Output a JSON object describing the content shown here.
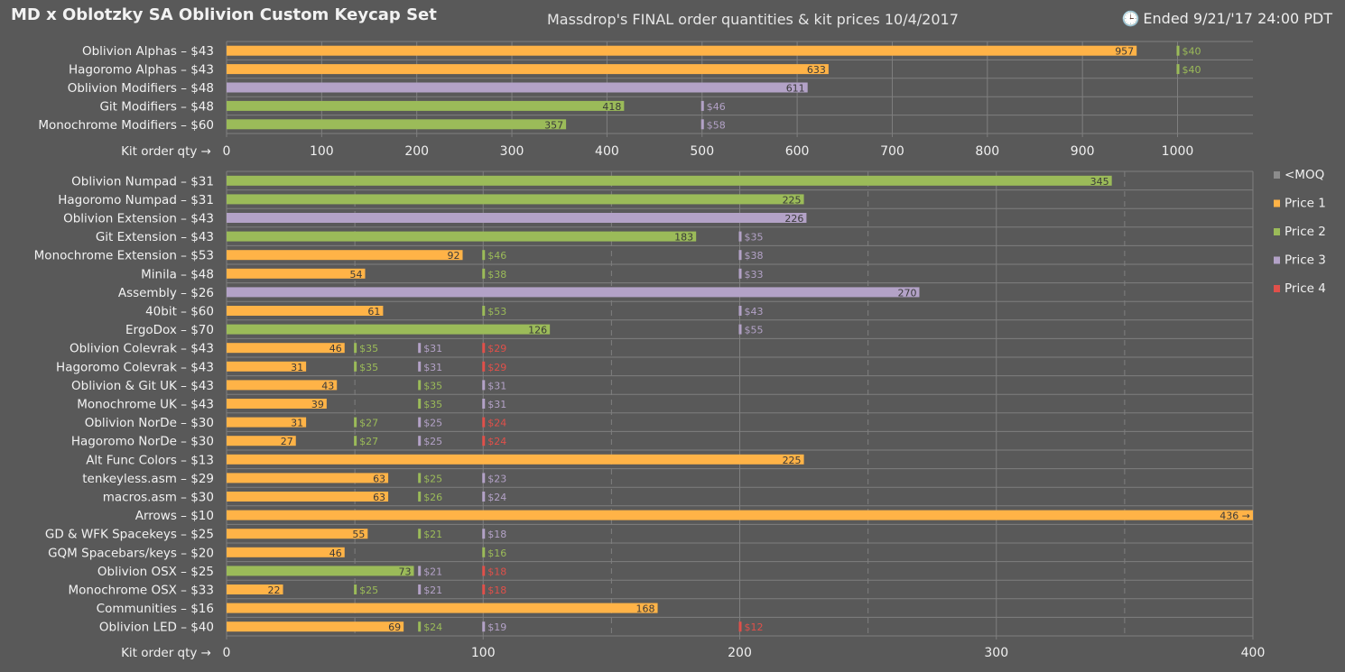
{
  "header": {
    "title": "MD x Oblotzky SA Oblivion Custom Keycap Set",
    "subtitle": "Massdrop's FINAL order quantities & kit prices 10/4/2017",
    "ended_icon": "clock-icon",
    "ended_text": "Ended 9/21/'17  24:00 PDT"
  },
  "colors": {
    "background": "#595959",
    "moq": "#8c8c8c",
    "price1": "#ffb347",
    "price2": "#9bbb59",
    "price3": "#b3a2c7",
    "price4": "#e0504a",
    "grid": "#7f7f7f"
  },
  "chart_data": [
    {
      "type": "bar",
      "orientation": "horizontal",
      "xlabel": "Kit order qty →",
      "xlim": [
        0,
        1080
      ],
      "xticks": [
        0,
        100,
        200,
        300,
        400,
        500,
        600,
        700,
        800,
        900,
        1000
      ],
      "grid": true,
      "rows": [
        {
          "label": "Oblivion Alphas – $43",
          "value": 957,
          "tier": "price1",
          "value_label": "957",
          "thresholds": [
            {
              "qty": 1000,
              "tier": "price2",
              "label": "$40"
            }
          ]
        },
        {
          "label": "Hagoromo Alphas – $43",
          "value": 633,
          "tier": "price1",
          "value_label": "633",
          "thresholds": [
            {
              "qty": 1000,
              "tier": "price2",
              "label": "$40"
            }
          ]
        },
        {
          "label": "Oblivion Modifiers – $48",
          "value": 611,
          "tier": "price3",
          "value_label": "611",
          "thresholds": []
        },
        {
          "label": "Git Modifiers – $48",
          "value": 418,
          "tier": "price2",
          "value_label": "418",
          "thresholds": [
            {
              "qty": 500,
              "tier": "price3",
              "label": "$46"
            }
          ]
        },
        {
          "label": "Monochrome Modifiers – $60",
          "value": 357,
          "tier": "price2",
          "value_label": "357",
          "thresholds": [
            {
              "qty": 500,
              "tier": "price3",
              "label": "$58"
            }
          ]
        }
      ]
    },
    {
      "type": "bar",
      "orientation": "horizontal",
      "xlabel": "Kit order qty →",
      "xlim": [
        0,
        400
      ],
      "xticks": [
        0,
        100,
        200,
        300,
        400
      ],
      "grid": true,
      "minor_dashed_grid": [
        50,
        150,
        250,
        350
      ],
      "legend": {
        "position": "right",
        "entries": [
          {
            "tier": "moq",
            "label": "<MOQ"
          },
          {
            "tier": "price1",
            "label": "Price 1"
          },
          {
            "tier": "price2",
            "label": "Price 2"
          },
          {
            "tier": "price3",
            "label": "Price 3"
          },
          {
            "tier": "price4",
            "label": "Price 4"
          }
        ]
      },
      "rows": [
        {
          "label": "Oblivion Numpad – $31",
          "value": 345,
          "tier": "price2",
          "value_label": "345",
          "thresholds": []
        },
        {
          "label": "Hagoromo Numpad – $31",
          "value": 225,
          "tier": "price2",
          "value_label": "225",
          "thresholds": []
        },
        {
          "label": "Oblivion Extension – $43",
          "value": 226,
          "tier": "price3",
          "value_label": "226",
          "thresholds": []
        },
        {
          "label": "Git Extension – $43",
          "value": 183,
          "tier": "price2",
          "value_label": "183",
          "thresholds": [
            {
              "qty": 200,
              "tier": "price3",
              "label": "$35"
            }
          ]
        },
        {
          "label": "Monochrome Extension – $53",
          "value": 92,
          "tier": "price1",
          "value_label": "92",
          "thresholds": [
            {
              "qty": 100,
              "tier": "price2",
              "label": "$46"
            },
            {
              "qty": 200,
              "tier": "price3",
              "label": "$38"
            }
          ]
        },
        {
          "label": "Minila  – $48",
          "value": 54,
          "tier": "price1",
          "value_label": "54",
          "thresholds": [
            {
              "qty": 100,
              "tier": "price2",
              "label": "$38"
            },
            {
              "qty": 200,
              "tier": "price3",
              "label": "$33"
            }
          ]
        },
        {
          "label": "Assembly  – $26",
          "value": 270,
          "tier": "price3",
          "value_label": "270",
          "thresholds": []
        },
        {
          "label": "40bit  – $60",
          "value": 61,
          "tier": "price1",
          "value_label": "61",
          "thresholds": [
            {
              "qty": 100,
              "tier": "price2",
              "label": "$53"
            },
            {
              "qty": 200,
              "tier": "price3",
              "label": "$43"
            }
          ]
        },
        {
          "label": "ErgoDox  – $70",
          "value": 126,
          "tier": "price2",
          "value_label": "126",
          "thresholds": [
            {
              "qty": 200,
              "tier": "price3",
              "label": "$55"
            }
          ]
        },
        {
          "label": "Oblivion Colevrak – $43",
          "value": 46,
          "tier": "price1",
          "value_label": "46",
          "thresholds": [
            {
              "qty": 50,
              "tier": "price2",
              "label": "$35"
            },
            {
              "qty": 75,
              "tier": "price3",
              "label": "$31"
            },
            {
              "qty": 100,
              "tier": "price4",
              "label": "$29"
            }
          ]
        },
        {
          "label": "Hagoromo Colevrak – $43",
          "value": 31,
          "tier": "price1",
          "value_label": "31",
          "thresholds": [
            {
              "qty": 50,
              "tier": "price2",
              "label": "$35"
            },
            {
              "qty": 75,
              "tier": "price3",
              "label": "$31"
            },
            {
              "qty": 100,
              "tier": "price4",
              "label": "$29"
            }
          ]
        },
        {
          "label": "Oblivion & Git UK – $43",
          "value": 43,
          "tier": "price1",
          "value_label": "43",
          "thresholds": [
            {
              "qty": 75,
              "tier": "price2",
              "label": "$35"
            },
            {
              "qty": 100,
              "tier": "price3",
              "label": "$31"
            }
          ]
        },
        {
          "label": "Monochrome UK – $43",
          "value": 39,
          "tier": "price1",
          "value_label": "39",
          "thresholds": [
            {
              "qty": 75,
              "tier": "price2",
              "label": "$35"
            },
            {
              "qty": 100,
              "tier": "price3",
              "label": "$31"
            }
          ]
        },
        {
          "label": "Oblivion NorDe – $30",
          "value": 31,
          "tier": "price1",
          "value_label": "31",
          "thresholds": [
            {
              "qty": 50,
              "tier": "price2",
              "label": "$27"
            },
            {
              "qty": 75,
              "tier": "price3",
              "label": "$25"
            },
            {
              "qty": 100,
              "tier": "price4",
              "label": "$24"
            }
          ]
        },
        {
          "label": "Hagoromo NorDe – $30",
          "value": 27,
          "tier": "price1",
          "value_label": "27",
          "thresholds": [
            {
              "qty": 50,
              "tier": "price2",
              "label": "$27"
            },
            {
              "qty": 75,
              "tier": "price3",
              "label": "$25"
            },
            {
              "qty": 100,
              "tier": "price4",
              "label": "$24"
            }
          ]
        },
        {
          "label": "Alt Func Colors  – $13",
          "value": 225,
          "tier": "price1",
          "value_label": "225",
          "thresholds": []
        },
        {
          "label": "tenkeyless.asm  – $29",
          "value": 63,
          "tier": "price1",
          "value_label": "63",
          "thresholds": [
            {
              "qty": 75,
              "tier": "price2",
              "label": "$25"
            },
            {
              "qty": 100,
              "tier": "price3",
              "label": "$23"
            }
          ]
        },
        {
          "label": "macros.asm  – $30",
          "value": 63,
          "tier": "price1",
          "value_label": "63",
          "thresholds": [
            {
              "qty": 75,
              "tier": "price2",
              "label": "$26"
            },
            {
              "qty": 100,
              "tier": "price3",
              "label": "$24"
            }
          ]
        },
        {
          "label": "Arrows  – $10",
          "value": 436,
          "tier": "price1",
          "value_label": "436 →",
          "thresholds": []
        },
        {
          "label": "GD & WFK Spacekeys  – $25",
          "value": 55,
          "tier": "price1",
          "value_label": "55",
          "thresholds": [
            {
              "qty": 75,
              "tier": "price2",
              "label": "$21"
            },
            {
              "qty": 100,
              "tier": "price3",
              "label": "$18"
            }
          ]
        },
        {
          "label": "GQM Spacebars/keys  – $20",
          "value": 46,
          "tier": "price1",
          "value_label": "46",
          "thresholds": [
            {
              "qty": 100,
              "tier": "price2",
              "label": "$16"
            }
          ]
        },
        {
          "label": "Oblivion OSX – $25",
          "value": 73,
          "tier": "price2",
          "value_label": "73",
          "thresholds": [
            {
              "qty": 75,
              "tier": "price3",
              "label": "$21"
            },
            {
              "qty": 100,
              "tier": "price4",
              "label": "$18"
            }
          ]
        },
        {
          "label": "Monochrome OSX – $33",
          "value": 22,
          "tier": "price1",
          "value_label": "22",
          "thresholds": [
            {
              "qty": 50,
              "tier": "price2",
              "label": "$25"
            },
            {
              "qty": 75,
              "tier": "price3",
              "label": "$21"
            },
            {
              "qty": 100,
              "tier": "price4",
              "label": "$18"
            }
          ]
        },
        {
          "label": "Communities  – $16",
          "value": 168,
          "tier": "price1",
          "value_label": "168",
          "thresholds": []
        },
        {
          "label": "Oblivion LED  – $40",
          "value": 69,
          "tier": "price1",
          "value_label": "69",
          "thresholds": [
            {
              "qty": 75,
              "tier": "price2",
              "label": "$24"
            },
            {
              "qty": 100,
              "tier": "price3",
              "label": "$19"
            },
            {
              "qty": 200,
              "tier": "price4",
              "label": "$12"
            }
          ]
        }
      ]
    }
  ]
}
